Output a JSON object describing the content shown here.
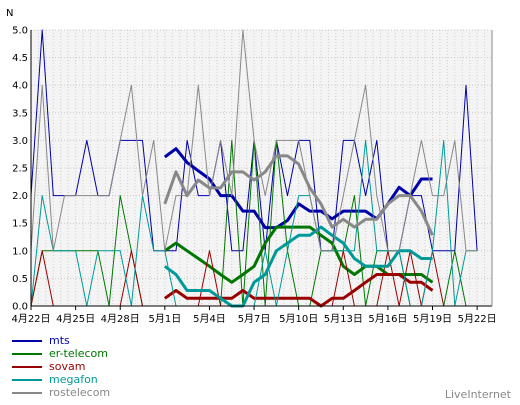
{
  "brand": "LiveInternet",
  "chart_data": {
    "type": "line",
    "ylabel": "N",
    "ylim": [
      0,
      5
    ],
    "y_ticks": [
      "0.0",
      "0.5",
      "1.0",
      "1.5",
      "2.0",
      "2.5",
      "3.0",
      "3.5",
      "4.0",
      "4.5",
      "5.0"
    ],
    "x_count": 62,
    "x_tick_labels": [
      "4月22日",
      "4月25日",
      "4月28日",
      "5月1日",
      "5月4日",
      "5月7日",
      "5月10日",
      "5月13日",
      "5月16日",
      "5月19日",
      "5月22日"
    ],
    "x_tick_indices": [
      0,
      6,
      12,
      18,
      24,
      30,
      36,
      42,
      48,
      54,
      60
    ],
    "grid": true,
    "legend_position": "bottom-left",
    "series": [
      {
        "name": "mts",
        "color": "#0000aa",
        "width": 1,
        "values": [
          2,
          5,
          2,
          2,
          2,
          3,
          2,
          2,
          3,
          3,
          3,
          1,
          1,
          1,
          3,
          2,
          2,
          3,
          1,
          1,
          3,
          1,
          3,
          2,
          3,
          3,
          1,
          1,
          3,
          3,
          2,
          3,
          1,
          1,
          2,
          2,
          1,
          1,
          1,
          4,
          1
        ],
        "x_start": 0,
        "x_step": 1.5,
        "offset_note": ""
      },
      {
        "name": "mts-avg",
        "color": "#0000aa",
        "width": 3,
        "legend": false,
        "values": [
          2.7,
          2.85,
          2.6,
          2.45,
          2.3,
          2.0,
          2.0,
          1.72,
          1.72,
          1.42,
          1.42,
          1.55,
          1.85,
          1.72,
          1.72,
          1.58,
          1.72,
          1.72,
          1.72,
          1.58,
          1.85,
          2.15,
          2.0,
          2.3,
          2.3
        ],
        "x_start": 18,
        "x_step": 1.5
      },
      {
        "name": "er-telecom",
        "color": "#007700",
        "width": 1,
        "values": [
          0,
          1,
          1,
          1,
          1,
          1,
          1,
          0,
          2,
          1,
          0,
          0,
          0,
          0,
          0,
          0,
          0,
          0,
          3,
          0,
          3,
          0,
          3,
          1,
          0,
          0,
          1,
          1,
          1,
          2,
          0,
          1,
          1,
          1,
          0,
          0,
          0,
          0,
          1,
          0,
          0
        ],
        "x_start": 0,
        "x_step": 1.5
      },
      {
        "name": "er-telecom-avg",
        "color": "#007700",
        "width": 3,
        "legend": false,
        "values": [
          1.0,
          1.14,
          1.0,
          0.86,
          0.72,
          0.57,
          0.43,
          0.57,
          0.72,
          1.14,
          1.43,
          1.43,
          1.43,
          1.43,
          1.28,
          1.14,
          0.72,
          0.57,
          0.72,
          0.72,
          0.57,
          0.57,
          0.57,
          0.57,
          0.43
        ],
        "x_start": 18,
        "x_step": 1.5
      },
      {
        "name": "sovam",
        "color": "#990000",
        "width": 1,
        "values": [
          0,
          1,
          0,
          0,
          0,
          0,
          0,
          0,
          0,
          1,
          0,
          0,
          0,
          0,
          0,
          0,
          1,
          0,
          0,
          0,
          0,
          0,
          0,
          0,
          0,
          0,
          0,
          0,
          1,
          0,
          0,
          0,
          1,
          0,
          1,
          0,
          1,
          0,
          0,
          0,
          0
        ],
        "x_start": 0,
        "x_step": 1.5
      },
      {
        "name": "sovam-avg",
        "color": "#990000",
        "width": 3,
        "legend": false,
        "values": [
          0.14,
          0.28,
          0.14,
          0.14,
          0.14,
          0.14,
          0.14,
          0.28,
          0.14,
          0.14,
          0.14,
          0.14,
          0.14,
          0.14,
          0.0,
          0.14,
          0.14,
          0.28,
          0.43,
          0.57,
          0.57,
          0.57,
          0.43,
          0.43,
          0.28
        ],
        "x_start": 18,
        "x_step": 1.5
      },
      {
        "name": "megafon",
        "color": "#009999",
        "width": 1,
        "values": [
          0,
          2,
          1,
          1,
          1,
          0,
          1,
          1,
          1,
          0,
          2,
          1,
          1,
          0,
          0,
          0,
          0,
          0,
          0,
          0,
          0,
          1,
          0,
          1,
          2,
          2,
          1,
          1,
          1,
          1,
          3,
          1,
          1,
          1,
          0,
          0,
          1,
          3,
          0,
          1,
          1
        ],
        "x_start": 0,
        "x_step": 1.5
      },
      {
        "name": "megafon-avg",
        "color": "#009999",
        "width": 3,
        "legend": false,
        "values": [
          0.72,
          0.57,
          0.28,
          0.28,
          0.28,
          0.14,
          0.0,
          0.0,
          0.43,
          0.57,
          1.0,
          1.14,
          1.28,
          1.28,
          1.43,
          1.28,
          1.14,
          0.86,
          0.72,
          0.72,
          0.72,
          1.0,
          1.0,
          0.86,
          0.86
        ],
        "x_start": 18,
        "x_step": 1.5
      },
      {
        "name": "rostelecom",
        "color": "#888888",
        "width": 1,
        "values": [
          1,
          4,
          1,
          2,
          2,
          2,
          2,
          2,
          3,
          4,
          2,
          3,
          1,
          2,
          2,
          4,
          2,
          3,
          2,
          5,
          3,
          2,
          3,
          3,
          3,
          2,
          1,
          1,
          2,
          3,
          4,
          2,
          1,
          1,
          2,
          3,
          2,
          2,
          3,
          1,
          1
        ],
        "x_start": 0,
        "x_step": 1.5
      },
      {
        "name": "rostelecom-avg",
        "color": "#888888",
        "width": 3,
        "legend": false,
        "values": [
          1.85,
          2.43,
          2.0,
          2.28,
          2.14,
          2.14,
          2.43,
          2.43,
          2.28,
          2.43,
          2.72,
          2.72,
          2.57,
          2.14,
          1.85,
          1.43,
          1.57,
          1.43,
          1.57,
          1.57,
          1.85,
          2.0,
          2.0,
          1.72,
          1.28
        ],
        "x_start": 18,
        "x_step": 1.5
      }
    ]
  }
}
